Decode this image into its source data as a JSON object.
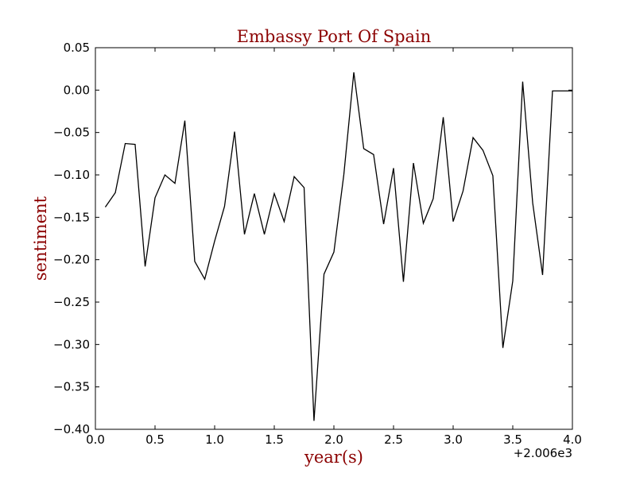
{
  "chart_data": {
    "type": "line",
    "title": "Embassy Port Of Spain",
    "xlabel": "year(s)",
    "ylabel": "sentiment",
    "x_offset_label": "+2.006e3",
    "xlim": [
      0.0,
      4.0
    ],
    "ylim": [
      -0.4,
      0.05
    ],
    "x_ticks": [
      "0.0",
      "0.5",
      "1.0",
      "1.5",
      "2.0",
      "2.5",
      "3.0",
      "3.5",
      "4.0"
    ],
    "y_ticks": [
      "0.05",
      "0.00",
      "−0.05",
      "−0.10",
      "−0.15",
      "−0.20",
      "−0.25",
      "−0.30",
      "−0.35",
      "−0.40"
    ],
    "grid": false,
    "colors": {
      "line": "#000000",
      "label_text": "#8b0000"
    },
    "series": [
      {
        "x": [
          0.083,
          0.167,
          0.25,
          0.333,
          0.417,
          0.5,
          0.583,
          0.667,
          0.75,
          0.833,
          0.917,
          1.0,
          1.083,
          1.167,
          1.25,
          1.333,
          1.417,
          1.5,
          1.583,
          1.667,
          1.75,
          1.833,
          1.917,
          2.0,
          2.083,
          2.167,
          2.25,
          2.333,
          2.417,
          2.5,
          2.583,
          2.667,
          2.75,
          2.833,
          2.917,
          3.0,
          3.083,
          3.167,
          3.25,
          3.333,
          3.417,
          3.5,
          3.583,
          3.667,
          3.75,
          3.833,
          3.917,
          4.0
        ],
        "values": [
          -0.138,
          -0.121,
          -0.063,
          -0.064,
          -0.208,
          -0.127,
          -0.1,
          -0.11,
          -0.036,
          -0.202,
          -0.223,
          -0.178,
          -0.137,
          -0.049,
          -0.17,
          -0.122,
          -0.17,
          -0.122,
          -0.155,
          -0.102,
          -0.115,
          -0.39,
          -0.217,
          -0.191,
          -0.1,
          0.021,
          -0.069,
          -0.076,
          -0.158,
          -0.092,
          -0.226,
          -0.086,
          -0.157,
          -0.128,
          -0.032,
          -0.155,
          -0.119,
          -0.056,
          -0.071,
          -0.101,
          -0.304,
          -0.225,
          0.01,
          -0.133,
          -0.218,
          -0.001,
          -0.001,
          -0.001
        ]
      }
    ]
  }
}
